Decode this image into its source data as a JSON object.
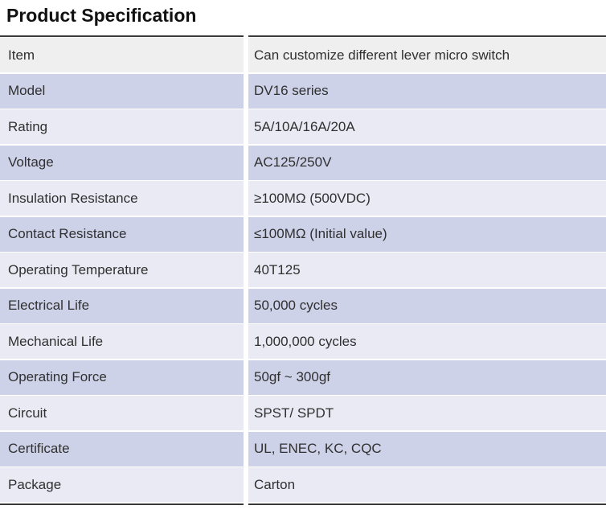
{
  "page": {
    "title": "Product Specification"
  },
  "table": {
    "rows": [
      {
        "label": "Item",
        "value": "Can customize different lever micro switch"
      },
      {
        "label": "Model",
        "value": "DV16 series"
      },
      {
        "label": "Rating",
        "value": "5A/10A/16A/20A"
      },
      {
        "label": "Voltage",
        "value": "AC125/250V"
      },
      {
        "label": "Insulation Resistance",
        "value": "≥100MΩ (500VDC)"
      },
      {
        "label": "Contact Resistance",
        "value": "≤100MΩ (Initial value)"
      },
      {
        "label": "Operating Temperature",
        "value": "40T125"
      },
      {
        "label": "Electrical Life",
        "value": "50,000 cycles"
      },
      {
        "label": "Mechanical Life",
        "value": "1,000,000 cycles"
      },
      {
        "label": "Operating Force",
        "value": "50gf ~ 300gf"
      },
      {
        "label": "Circuit",
        "value": "SPST/ SPDT"
      },
      {
        "label": "Certificate",
        "value": "UL, ENEC, KC, CQC"
      },
      {
        "label": "Package",
        "value": "Carton"
      }
    ]
  },
  "colors": {
    "title_text": "#111111",
    "body_text": "#303030",
    "table_border": "#3a3a3a",
    "first_row_bg": "#efefef",
    "alt_row_medium_bg": "#cdd2e8",
    "alt_row_light_bg": "#e9eaf4",
    "row_gap": "#ffffff"
  }
}
